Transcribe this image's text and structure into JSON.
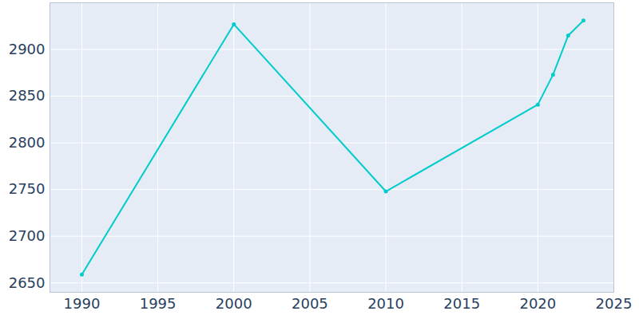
{
  "chart_data": {
    "type": "line",
    "x": [
      1990,
      2000,
      2010,
      2020,
      2021,
      2022,
      2023
    ],
    "values": [
      2659,
      2927,
      2748,
      2841,
      2873,
      2915,
      2931
    ],
    "color": "#00cccc",
    "marker": "circle",
    "line_style": "solid",
    "xlim": [
      1987.9,
      2025
    ],
    "xticks": [
      1990,
      1995,
      2000,
      2005,
      2010,
      2015,
      2020,
      2025
    ],
    "ylim": [
      2640,
      2950
    ],
    "yticks": [
      2650,
      2700,
      2750,
      2800,
      2850,
      2900
    ],
    "grid": true
  }
}
